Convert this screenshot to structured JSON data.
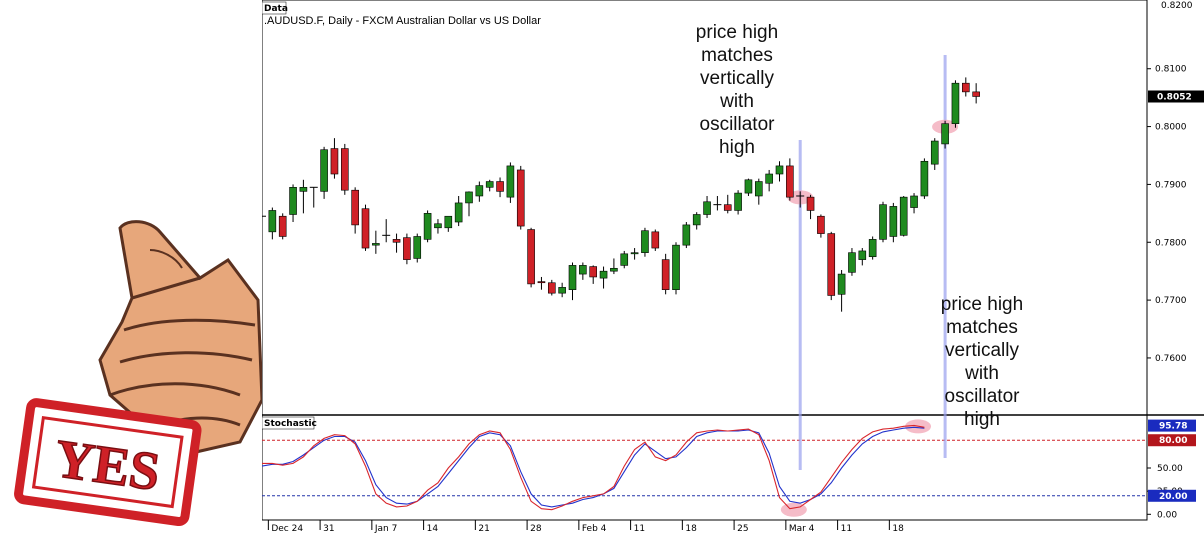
{
  "stamp_text": "YES",
  "annotations": [
    {
      "id": "ann-1",
      "lines": [
        "price high",
        "matches",
        "vertically",
        "with",
        "oscillator",
        "high"
      ]
    },
    {
      "id": "ann-2",
      "lines": [
        "price high",
        "matches",
        "vertically",
        "with",
        "oscillator",
        "high"
      ]
    }
  ],
  "chart_data": {
    "type": "candlestick",
    "panel_label": "Data",
    "title": ".AUDUSD.F, Daily - FXCM Australian Dollar vs US Dollar",
    "current_price": "0.8052",
    "top_label": "0.8200",
    "ylim": [
      0.751,
      0.8205
    ],
    "y_ticks": [
      "0.8100",
      "0.8000",
      "0.7900",
      "0.7800",
      "0.7700",
      "0.7600"
    ],
    "x_ticks": [
      "Dec 24",
      "31",
      "Jan 7",
      "14",
      "21",
      "28",
      "Feb 4",
      "11",
      "18",
      "25",
      "Mar 4",
      "11",
      "18"
    ],
    "candles": [
      {
        "o": 0.7845,
        "h": 0.7852,
        "l": 0.7838,
        "c": 0.7845
      },
      {
        "o": 0.7818,
        "h": 0.786,
        "l": 0.7805,
        "c": 0.7855
      },
      {
        "o": 0.7845,
        "h": 0.785,
        "l": 0.7805,
        "c": 0.781
      },
      {
        "o": 0.7848,
        "h": 0.79,
        "l": 0.7835,
        "c": 0.7895
      },
      {
        "o": 0.7888,
        "h": 0.7908,
        "l": 0.785,
        "c": 0.7895
      },
      {
        "o": 0.7895,
        "h": 0.7895,
        "l": 0.786,
        "c": 0.7895
      },
      {
        "o": 0.7888,
        "h": 0.7965,
        "l": 0.7875,
        "c": 0.796
      },
      {
        "o": 0.7962,
        "h": 0.798,
        "l": 0.791,
        "c": 0.7918
      },
      {
        "o": 0.7962,
        "h": 0.797,
        "l": 0.7882,
        "c": 0.789
      },
      {
        "o": 0.789,
        "h": 0.7895,
        "l": 0.7815,
        "c": 0.783
      },
      {
        "o": 0.7858,
        "h": 0.7865,
        "l": 0.7785,
        "c": 0.779
      },
      {
        "o": 0.7795,
        "h": 0.782,
        "l": 0.778,
        "c": 0.7798
      },
      {
        "o": 0.7812,
        "h": 0.784,
        "l": 0.78,
        "c": 0.7812
      },
      {
        "o": 0.7805,
        "h": 0.7815,
        "l": 0.7782,
        "c": 0.78
      },
      {
        "o": 0.7808,
        "h": 0.7815,
        "l": 0.7762,
        "c": 0.777
      },
      {
        "o": 0.7772,
        "h": 0.7815,
        "l": 0.7765,
        "c": 0.781
      },
      {
        "o": 0.7805,
        "h": 0.7855,
        "l": 0.78,
        "c": 0.785
      },
      {
        "o": 0.7825,
        "h": 0.784,
        "l": 0.7815,
        "c": 0.7832
      },
      {
        "o": 0.7825,
        "h": 0.7845,
        "l": 0.7818,
        "c": 0.7845
      },
      {
        "o": 0.7835,
        "h": 0.788,
        "l": 0.7828,
        "c": 0.7868
      },
      {
        "o": 0.7868,
        "h": 0.7888,
        "l": 0.7845,
        "c": 0.7887
      },
      {
        "o": 0.788,
        "h": 0.7905,
        "l": 0.787,
        "c": 0.7898
      },
      {
        "o": 0.7895,
        "h": 0.7908,
        "l": 0.7888,
        "c": 0.7905
      },
      {
        "o": 0.7905,
        "h": 0.7912,
        "l": 0.7878,
        "c": 0.7888
      },
      {
        "o": 0.7878,
        "h": 0.7938,
        "l": 0.7868,
        "c": 0.7932
      },
      {
        "o": 0.7925,
        "h": 0.7932,
        "l": 0.7822,
        "c": 0.7828
      },
      {
        "o": 0.7822,
        "h": 0.7825,
        "l": 0.7722,
        "c": 0.7728
      },
      {
        "o": 0.7732,
        "h": 0.774,
        "l": 0.7718,
        "c": 0.773
      },
      {
        "o": 0.773,
        "h": 0.7735,
        "l": 0.7708,
        "c": 0.7712
      },
      {
        "o": 0.7712,
        "h": 0.773,
        "l": 0.7705,
        "c": 0.7722
      },
      {
        "o": 0.7718,
        "h": 0.7765,
        "l": 0.77,
        "c": 0.776
      },
      {
        "o": 0.7745,
        "h": 0.7765,
        "l": 0.7735,
        "c": 0.776
      },
      {
        "o": 0.7758,
        "h": 0.776,
        "l": 0.7728,
        "c": 0.774
      },
      {
        "o": 0.7738,
        "h": 0.7758,
        "l": 0.772,
        "c": 0.775
      },
      {
        "o": 0.775,
        "h": 0.7772,
        "l": 0.7745,
        "c": 0.7755
      },
      {
        "o": 0.776,
        "h": 0.7785,
        "l": 0.7755,
        "c": 0.778
      },
      {
        "o": 0.778,
        "h": 0.779,
        "l": 0.777,
        "c": 0.7782
      },
      {
        "o": 0.7782,
        "h": 0.7825,
        "l": 0.7775,
        "c": 0.782
      },
      {
        "o": 0.7818,
        "h": 0.7822,
        "l": 0.7785,
        "c": 0.779
      },
      {
        "o": 0.777,
        "h": 0.778,
        "l": 0.771,
        "c": 0.7718
      },
      {
        "o": 0.7718,
        "h": 0.78,
        "l": 0.771,
        "c": 0.7795
      },
      {
        "o": 0.7795,
        "h": 0.7835,
        "l": 0.779,
        "c": 0.783
      },
      {
        "o": 0.783,
        "h": 0.7852,
        "l": 0.7822,
        "c": 0.7848
      },
      {
        "o": 0.7848,
        "h": 0.788,
        "l": 0.7842,
        "c": 0.787
      },
      {
        "o": 0.7865,
        "h": 0.788,
        "l": 0.7855,
        "c": 0.7865
      },
      {
        "o": 0.7865,
        "h": 0.7882,
        "l": 0.785,
        "c": 0.7855
      },
      {
        "o": 0.7855,
        "h": 0.789,
        "l": 0.7848,
        "c": 0.7885
      },
      {
        "o": 0.7885,
        "h": 0.791,
        "l": 0.788,
        "c": 0.7908
      },
      {
        "o": 0.788,
        "h": 0.791,
        "l": 0.7865,
        "c": 0.7905
      },
      {
        "o": 0.7902,
        "h": 0.7925,
        "l": 0.7888,
        "c": 0.7918
      },
      {
        "o": 0.7918,
        "h": 0.794,
        "l": 0.7905,
        "c": 0.7932
      },
      {
        "o": 0.7932,
        "h": 0.7945,
        "l": 0.7872,
        "c": 0.7878
      },
      {
        "o": 0.788,
        "h": 0.7888,
        "l": 0.786,
        "c": 0.788
      },
      {
        "o": 0.7878,
        "h": 0.7882,
        "l": 0.784,
        "c": 0.7855
      },
      {
        "o": 0.7845,
        "h": 0.7848,
        "l": 0.7808,
        "c": 0.7815
      },
      {
        "o": 0.7815,
        "h": 0.7818,
        "l": 0.77,
        "c": 0.7708
      },
      {
        "o": 0.771,
        "h": 0.7752,
        "l": 0.768,
        "c": 0.7745
      },
      {
        "o": 0.7748,
        "h": 0.779,
        "l": 0.7742,
        "c": 0.7782
      },
      {
        "o": 0.777,
        "h": 0.779,
        "l": 0.776,
        "c": 0.7785
      },
      {
        "o": 0.7775,
        "h": 0.781,
        "l": 0.777,
        "c": 0.7805
      },
      {
        "o": 0.7805,
        "h": 0.787,
        "l": 0.78,
        "c": 0.7865
      },
      {
        "o": 0.781,
        "h": 0.7868,
        "l": 0.78,
        "c": 0.7862
      },
      {
        "o": 0.7812,
        "h": 0.788,
        "l": 0.781,
        "c": 0.7878
      },
      {
        "o": 0.786,
        "h": 0.7885,
        "l": 0.785,
        "c": 0.788
      },
      {
        "o": 0.788,
        "h": 0.7945,
        "l": 0.7875,
        "c": 0.794
      },
      {
        "o": 0.7935,
        "h": 0.798,
        "l": 0.7925,
        "c": 0.7975
      },
      {
        "o": 0.797,
        "h": 0.801,
        "l": 0.7962,
        "c": 0.8005
      },
      {
        "o": 0.8005,
        "h": 0.808,
        "l": 0.7998,
        "c": 0.8075
      },
      {
        "o": 0.8075,
        "h": 0.8085,
        "l": 0.8052,
        "c": 0.806
      },
      {
        "o": 0.806,
        "h": 0.8075,
        "l": 0.804,
        "c": 0.8052
      }
    ],
    "stochastic": {
      "panel_label": "Stochastic",
      "ylim": [
        -4,
        104
      ],
      "overbought": "80.00",
      "oversold": "20.00",
      "current": "95.78",
      "y_ticks": [
        "50.00",
        "25.00",
        "0.00"
      ],
      "k": [
        55,
        55,
        53,
        55,
        62,
        74,
        82,
        86,
        85,
        76,
        52,
        22,
        12,
        8,
        9,
        14,
        26,
        34,
        50,
        62,
        76,
        86,
        90,
        88,
        70,
        40,
        14,
        6,
        5,
        9,
        14,
        18,
        20,
        22,
        30,
        52,
        70,
        78,
        62,
        58,
        64,
        78,
        88,
        90,
        91,
        90,
        91,
        92,
        86,
        58,
        18,
        6,
        8,
        16,
        24,
        40,
        56,
        70,
        82,
        89,
        92,
        93,
        95,
        96,
        94
      ],
      "d": [
        52,
        54,
        54,
        57,
        64,
        72,
        80,
        84,
        84,
        78,
        58,
        32,
        18,
        12,
        11,
        14,
        22,
        30,
        44,
        58,
        72,
        84,
        88,
        86,
        74,
        46,
        22,
        10,
        8,
        10,
        12,
        16,
        18,
        22,
        28,
        46,
        64,
        76,
        68,
        60,
        62,
        72,
        84,
        88,
        90,
        90,
        90,
        91,
        88,
        66,
        30,
        14,
        12,
        16,
        22,
        34,
        50,
        64,
        76,
        84,
        89,
        91,
        93,
        94,
        93
      ]
    }
  }
}
